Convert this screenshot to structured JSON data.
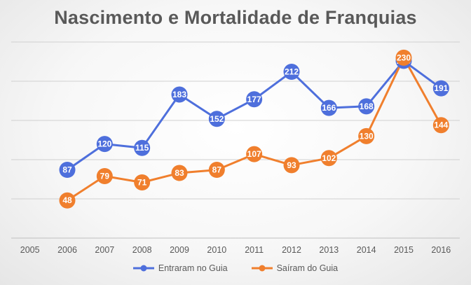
{
  "chart_data": {
    "type": "line",
    "title": "Nascimento e Mortalidade de Franquias",
    "categories": [
      "2005",
      "2006",
      "2007",
      "2008",
      "2009",
      "2010",
      "2011",
      "2012",
      "2013",
      "2014",
      "2015",
      "2016"
    ],
    "series": [
      {
        "name": "Entraram no Guia",
        "color": "#4E6FDC",
        "values": [
          null,
          87,
          120,
          115,
          183,
          152,
          177,
          212,
          166,
          168,
          226,
          191
        ]
      },
      {
        "name": "Saíram do Guia",
        "color": "#F07F2D",
        "values": [
          null,
          48,
          79,
          71,
          83,
          87,
          107,
          93,
          102,
          130,
          230,
          144
        ]
      }
    ],
    "ylim": [
      0,
      250
    ],
    "y_gridlines": [
      50,
      100,
      150,
      200,
      250
    ],
    "grid": true,
    "legend_position": "bottom",
    "data_labels": true
  }
}
